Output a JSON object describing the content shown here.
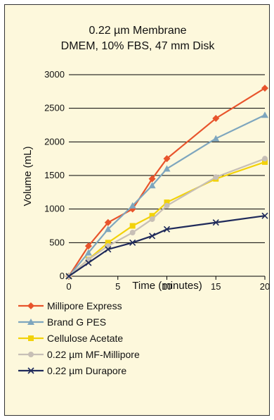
{
  "chart_data": {
    "type": "line",
    "title": "0.22 µm Membrane",
    "subtitle": "DMEM, 10% FBS, 47 mm Disk",
    "xlabel": "Time (minutes)",
    "ylabel": "Volume (mL)",
    "xlim": [
      0,
      20
    ],
    "ylim": [
      0,
      3000
    ],
    "xticks": [
      "0",
      "5",
      "10",
      "15",
      "20"
    ],
    "yticks": [
      "0",
      "500",
      "1000",
      "1500",
      "2000",
      "2500",
      "3000"
    ],
    "grid": "horizontal",
    "legend_position": "bottom",
    "series": [
      {
        "name": "Millipore Express",
        "color": "#e8542c",
        "marker": "diamond",
        "x": [
          0,
          2,
          4,
          6.5,
          8.5,
          10,
          15,
          20
        ],
        "y": [
          0,
          450,
          800,
          1000,
          1450,
          1750,
          2350,
          2800
        ]
      },
      {
        "name": "Brand G PES",
        "color": "#7ea6be",
        "marker": "triangle",
        "x": [
          0,
          2,
          4,
          6.5,
          8.5,
          10,
          15,
          20
        ],
        "y": [
          0,
          350,
          700,
          1050,
          1350,
          1600,
          2050,
          2400
        ]
      },
      {
        "name": "Cellulose Acetate",
        "color": "#f2d20a",
        "marker": "square",
        "x": [
          0,
          2,
          4,
          6.5,
          8.5,
          10,
          15,
          20
        ],
        "y": [
          0,
          250,
          500,
          750,
          900,
          1100,
          1450,
          1700
        ]
      },
      {
        "name": "0.22 µm MF-Millipore",
        "color": "#c7bfb6",
        "marker": "circle",
        "x": [
          0,
          2,
          4,
          6.5,
          8.5,
          10,
          15,
          20
        ],
        "y": [
          0,
          250,
          450,
          650,
          850,
          1050,
          1475,
          1750
        ]
      },
      {
        "name": "0.22 µm Durapore",
        "color": "#1f2a5a",
        "marker": "x",
        "x": [
          0,
          2,
          4,
          6.5,
          8.5,
          10,
          15,
          20
        ],
        "y": [
          0,
          200,
          400,
          500,
          600,
          700,
          800,
          900
        ]
      }
    ]
  }
}
